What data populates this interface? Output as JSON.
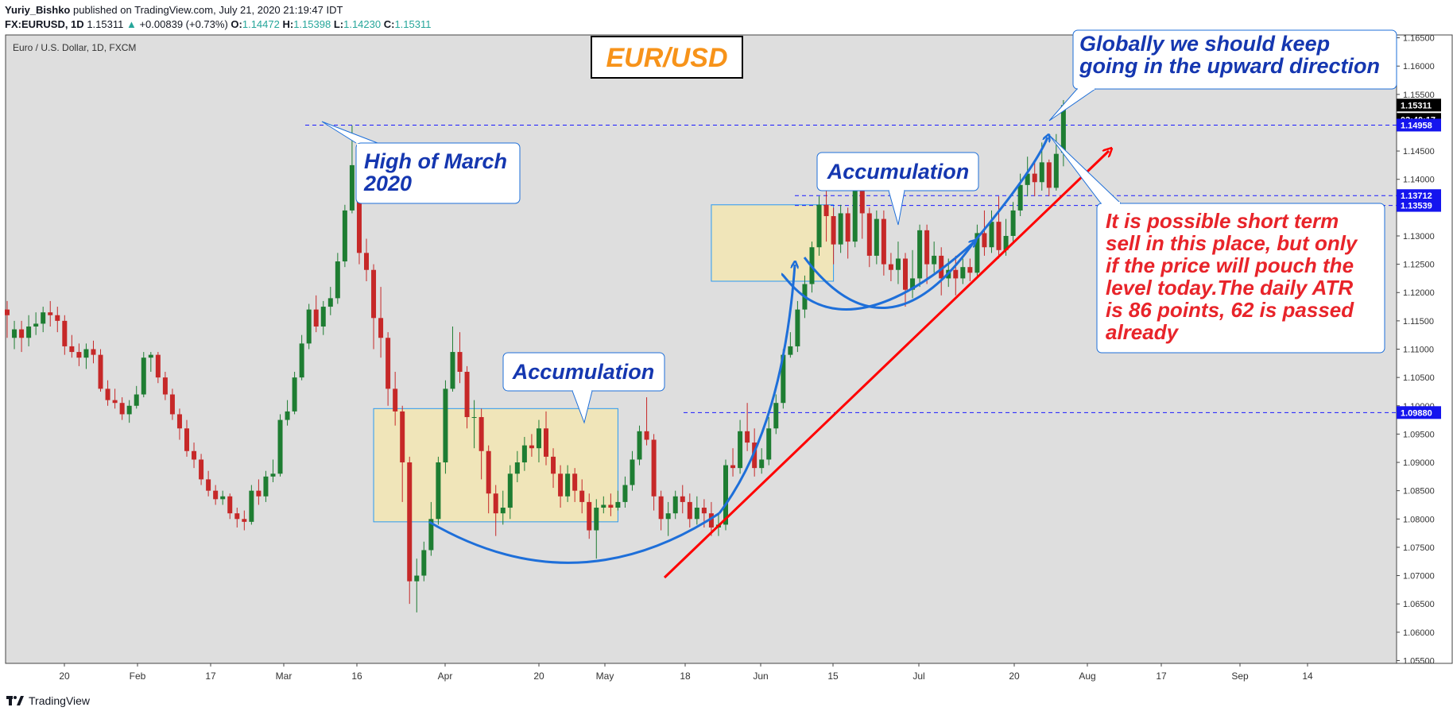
{
  "header": {
    "author": "Yuriy_Bishko",
    "published": "published on TradingView.com, July 21, 2020 21:19:47 IDT",
    "symbol": "FX:EURUSD, 1D",
    "last": "1.15311",
    "change": "+0.00839 (+0.73%)",
    "o_label": "O:",
    "o": "1.14472",
    "h_label": "H:",
    "h": "1.15398",
    "l_label": "L:",
    "l": "1.14230",
    "c_label": "C:",
    "c": "1.15311"
  },
  "footer": {
    "brand": "TradingView"
  },
  "colors": {
    "up": "#26a69a",
    "down": "#ef5350",
    "bull_candle": "#1e7d32",
    "bear_candle": "#c62828",
    "annotation_blue": "#1e6fd9",
    "annotation_red": "#ff0000",
    "zone": "#f1e6b8"
  },
  "chart_data": {
    "type": "candlestick",
    "instrument": "Euro / U.S. Dollar, 1D, FXCM",
    "title": "EUR/USD",
    "x_ticks": [
      "20",
      "Feb",
      "17",
      "Mar",
      "16",
      "Apr",
      "20",
      "May",
      "18",
      "Jun",
      "15",
      "Jul",
      "20",
      "Aug",
      "17",
      "Sep",
      "14"
    ],
    "y_ticks": [
      "1.16500",
      "1.16000",
      "1.15500",
      "1.15000",
      "1.14500",
      "1.14000",
      "1.13500",
      "1.13000",
      "1.12500",
      "1.12000",
      "1.11500",
      "1.11000",
      "1.10500",
      "1.10000",
      "1.09500",
      "1.09000",
      "1.08500",
      "1.08000",
      "1.07500",
      "1.07000",
      "1.06500",
      "1.06000",
      "1.05500"
    ],
    "ylim": [
      1.0545,
      1.1655
    ],
    "price_tags": [
      {
        "label": "1.15311",
        "value": 1.15311,
        "style": "last"
      },
      {
        "label": "02:40:17",
        "value": 1.1512,
        "style": "timer"
      },
      {
        "label": "1.14958",
        "value": 1.14958,
        "style": "level"
      },
      {
        "label": "1.13712",
        "value": 1.13712,
        "style": "level"
      },
      {
        "label": "1.13539",
        "value": 1.13539,
        "style": "level"
      },
      {
        "label": "1.09880",
        "value": 1.0988,
        "style": "level"
      }
    ],
    "levels": [
      1.14958,
      1.13712,
      1.13539,
      1.0988
    ],
    "annotations": {
      "high_march": "High of March\n2020",
      "accum1": "Accumulation",
      "accum2": "Accumulation",
      "global": "Globally we should keep\ngoing in the upward direction",
      "sell_note": "It is possible short term\nsell in this place, but only\nif the price will pouch the\nlevel today.The daily ATR\nis 86 points, 62 is passed\nalready"
    },
    "candles": [
      [
        1.117,
        1.116,
        1.1185,
        1.112
      ],
      [
        1.112,
        1.1135,
        1.115,
        1.11
      ],
      [
        1.1135,
        1.112,
        1.115,
        1.1095
      ],
      [
        1.112,
        1.114,
        1.116,
        1.1105
      ],
      [
        1.114,
        1.1145,
        1.1165,
        1.1125
      ],
      [
        1.1145,
        1.1165,
        1.1175,
        1.113
      ],
      [
        1.1165,
        1.116,
        1.1185,
        1.114
      ],
      [
        1.116,
        1.115,
        1.1175,
        1.113
      ],
      [
        1.115,
        1.1105,
        1.116,
        1.109
      ],
      [
        1.1105,
        1.1095,
        1.1125,
        1.1085
      ],
      [
        1.1095,
        1.1085,
        1.111,
        1.107
      ],
      [
        1.1085,
        1.11,
        1.111,
        1.1065
      ],
      [
        1.11,
        1.109,
        1.1115,
        1.1075
      ],
      [
        1.109,
        1.103,
        1.11,
        1.1025
      ],
      [
        1.103,
        1.101,
        1.1045,
        1.1
      ],
      [
        1.101,
        1.1005,
        1.103,
        1.0995
      ],
      [
        1.1005,
        1.0985,
        1.1015,
        1.0975
      ],
      [
        1.0985,
        1.1,
        1.101,
        1.097
      ],
      [
        1.1,
        1.102,
        1.1035,
        1.0995
      ],
      [
        1.102,
        1.1085,
        1.1095,
        1.1015
      ],
      [
        1.1085,
        1.109,
        1.1095,
        1.106
      ],
      [
        1.109,
        1.105,
        1.1095,
        1.104
      ],
      [
        1.105,
        1.102,
        1.106,
        1.101
      ],
      [
        1.102,
        1.0985,
        1.103,
        1.0975
      ],
      [
        1.0985,
        1.096,
        1.0995,
        1.094
      ],
      [
        1.096,
        1.092,
        1.0975,
        1.091
      ],
      [
        1.092,
        1.0905,
        1.0935,
        1.089
      ],
      [
        1.0905,
        1.087,
        1.0915,
        1.086
      ],
      [
        1.087,
        1.085,
        1.0885,
        1.084
      ],
      [
        1.085,
        1.0835,
        1.086,
        1.0825
      ],
      [
        1.0835,
        1.084,
        1.085,
        1.0825
      ],
      [
        1.084,
        1.081,
        1.0845,
        1.08
      ],
      [
        1.081,
        1.08,
        1.082,
        1.0785
      ],
      [
        1.08,
        1.0795,
        1.0815,
        1.078
      ],
      [
        1.0795,
        1.085,
        1.086,
        1.079
      ],
      [
        1.085,
        1.084,
        1.087,
        1.0825
      ],
      [
        1.084,
        1.0875,
        1.0885,
        1.083
      ],
      [
        1.0875,
        1.088,
        1.0905,
        1.0865
      ],
      [
        1.088,
        1.0975,
        1.0985,
        1.0875
      ],
      [
        1.0975,
        1.099,
        1.101,
        1.0965
      ],
      [
        1.099,
        1.105,
        1.106,
        1.0985
      ],
      [
        1.105,
        1.111,
        1.1125,
        1.1045
      ],
      [
        1.111,
        1.117,
        1.118,
        1.11
      ],
      [
        1.117,
        1.114,
        1.1195,
        1.113
      ],
      [
        1.114,
        1.1175,
        1.1185,
        1.1125
      ],
      [
        1.1175,
        1.119,
        1.121,
        1.116
      ],
      [
        1.119,
        1.1255,
        1.127,
        1.118
      ],
      [
        1.1255,
        1.1345,
        1.1355,
        1.1245
      ],
      [
        1.1345,
        1.1425,
        1.1495,
        1.134
      ],
      [
        1.1425,
        1.127,
        1.144,
        1.125
      ],
      [
        1.127,
        1.124,
        1.1295,
        1.122
      ],
      [
        1.124,
        1.1155,
        1.125,
        1.11
      ],
      [
        1.1155,
        1.112,
        1.121,
        1.1085
      ],
      [
        1.112,
        1.103,
        1.113,
        1.1
      ],
      [
        1.103,
        1.099,
        1.106,
        1.0965
      ],
      [
        1.099,
        1.09,
        1.1,
        1.083
      ],
      [
        1.09,
        1.069,
        1.091,
        1.065
      ],
      [
        1.069,
        1.07,
        1.073,
        1.0635
      ],
      [
        1.07,
        1.0745,
        1.076,
        1.069
      ],
      [
        1.0745,
        1.08,
        1.083,
        1.0735
      ],
      [
        1.08,
        1.09,
        1.091,
        1.079
      ],
      [
        1.09,
        1.103,
        1.1045,
        1.088
      ],
      [
        1.103,
        1.1095,
        1.114,
        1.1025
      ],
      [
        1.1095,
        1.106,
        1.113,
        1.104
      ],
      [
        1.106,
        1.098,
        1.107,
        1.096
      ],
      [
        1.098,
        1.098,
        1.101,
        1.0925
      ],
      [
        1.098,
        1.092,
        1.0995,
        1.087
      ],
      [
        1.092,
        1.0845,
        1.093,
        1.081
      ],
      [
        1.0845,
        1.081,
        1.086,
        1.077
      ],
      [
        1.081,
        1.082,
        1.085,
        1.079
      ],
      [
        1.082,
        1.088,
        1.0895,
        1.08
      ],
      [
        1.088,
        1.09,
        1.092,
        1.0865
      ],
      [
        1.09,
        1.093,
        1.0945,
        1.0885
      ],
      [
        1.093,
        1.0925,
        1.095,
        1.091
      ],
      [
        1.0925,
        1.096,
        1.0975,
        1.09
      ],
      [
        1.096,
        1.091,
        1.099,
        1.0895
      ],
      [
        1.091,
        1.088,
        1.0925,
        1.0855
      ],
      [
        1.088,
        1.084,
        1.0895,
        1.082
      ],
      [
        1.084,
        1.088,
        1.0895,
        1.083
      ],
      [
        1.088,
        1.085,
        1.089,
        1.083
      ],
      [
        1.085,
        1.083,
        1.087,
        1.081
      ],
      [
        1.083,
        1.078,
        1.0845,
        1.0765
      ],
      [
        1.078,
        1.082,
        1.0835,
        1.073
      ],
      [
        1.082,
        1.0825,
        1.084,
        1.081
      ],
      [
        1.0825,
        1.082,
        1.0845,
        1.0805
      ],
      [
        1.082,
        1.083,
        1.085,
        1.0815
      ],
      [
        1.083,
        1.086,
        1.0875,
        1.082
      ],
      [
        1.086,
        1.0905,
        1.092,
        1.085
      ],
      [
        1.0905,
        1.0955,
        1.0965,
        1.0895
      ],
      [
        1.0955,
        1.094,
        1.1015,
        1.093
      ],
      [
        1.094,
        1.084,
        1.095,
        1.0815
      ],
      [
        1.084,
        1.08,
        1.085,
        1.078
      ],
      [
        1.08,
        1.081,
        1.083,
        1.077
      ],
      [
        1.081,
        1.084,
        1.085,
        1.08
      ],
      [
        1.084,
        1.083,
        1.086,
        1.081
      ],
      [
        1.083,
        1.08,
        1.0845,
        1.0785
      ],
      [
        1.08,
        1.082,
        1.084,
        1.079
      ],
      [
        1.082,
        1.081,
        1.0835,
        1.0785
      ],
      [
        1.081,
        1.0785,
        1.083,
        1.077
      ],
      [
        1.0785,
        1.079,
        1.081,
        1.077
      ],
      [
        1.079,
        1.0895,
        1.0905,
        1.078
      ],
      [
        1.0895,
        1.089,
        1.0925,
        1.0875
      ],
      [
        1.089,
        1.0955,
        1.0975,
        1.088
      ],
      [
        1.0955,
        1.0935,
        1.1005,
        1.092
      ],
      [
        1.0935,
        1.089,
        1.096,
        1.0875
      ],
      [
        1.089,
        1.0905,
        1.0925,
        1.088
      ],
      [
        1.0905,
        1.096,
        1.098,
        1.0895
      ],
      [
        1.096,
        1.1005,
        1.102,
        1.095
      ],
      [
        1.1005,
        1.109,
        1.11,
        1.0995
      ],
      [
        1.109,
        1.1105,
        1.113,
        1.1085
      ],
      [
        1.1105,
        1.117,
        1.1185,
        1.1095
      ],
      [
        1.117,
        1.1215,
        1.123,
        1.1155
      ],
      [
        1.1215,
        1.128,
        1.129,
        1.12
      ],
      [
        1.128,
        1.1355,
        1.137,
        1.1265
      ],
      [
        1.1355,
        1.1335,
        1.1385,
        1.129
      ],
      [
        1.1335,
        1.1285,
        1.135,
        1.125
      ],
      [
        1.1285,
        1.134,
        1.1355,
        1.127
      ],
      [
        1.134,
        1.129,
        1.135,
        1.126
      ],
      [
        1.129,
        1.138,
        1.142,
        1.128
      ],
      [
        1.138,
        1.134,
        1.1385,
        1.1295
      ],
      [
        1.134,
        1.1265,
        1.135,
        1.1245
      ],
      [
        1.1265,
        1.133,
        1.1345,
        1.125
      ],
      [
        1.133,
        1.125,
        1.1345,
        1.123
      ],
      [
        1.125,
        1.124,
        1.127,
        1.122
      ],
      [
        1.124,
        1.126,
        1.129,
        1.1215
      ],
      [
        1.126,
        1.1205,
        1.127,
        1.1175
      ],
      [
        1.1205,
        1.1225,
        1.1275,
        1.119
      ],
      [
        1.1225,
        1.131,
        1.132,
        1.121
      ],
      [
        1.131,
        1.125,
        1.132,
        1.1215
      ],
      [
        1.125,
        1.1265,
        1.129,
        1.1235
      ],
      [
        1.1265,
        1.1225,
        1.128,
        1.1195
      ],
      [
        1.1225,
        1.124,
        1.126,
        1.121
      ],
      [
        1.124,
        1.1225,
        1.1265,
        1.1195
      ],
      [
        1.1225,
        1.1245,
        1.126,
        1.1215
      ],
      [
        1.1245,
        1.1235,
        1.126,
        1.122
      ],
      [
        1.1235,
        1.1305,
        1.132,
        1.123
      ],
      [
        1.1305,
        1.128,
        1.1345,
        1.1265
      ],
      [
        1.128,
        1.1325,
        1.1345,
        1.127
      ],
      [
        1.1325,
        1.1275,
        1.137,
        1.126
      ],
      [
        1.1275,
        1.13,
        1.133,
        1.1265
      ],
      [
        1.13,
        1.1345,
        1.136,
        1.129
      ],
      [
        1.1345,
        1.139,
        1.141,
        1.1335
      ],
      [
        1.139,
        1.141,
        1.144,
        1.137
      ],
      [
        1.141,
        1.1395,
        1.143,
        1.137
      ],
      [
        1.1395,
        1.143,
        1.1465,
        1.138
      ],
      [
        1.143,
        1.1385,
        1.1435,
        1.137
      ],
      [
        1.1385,
        1.1445,
        1.148,
        1.138
      ],
      [
        1.1447,
        1.1531,
        1.154,
        1.1423
      ]
    ]
  }
}
